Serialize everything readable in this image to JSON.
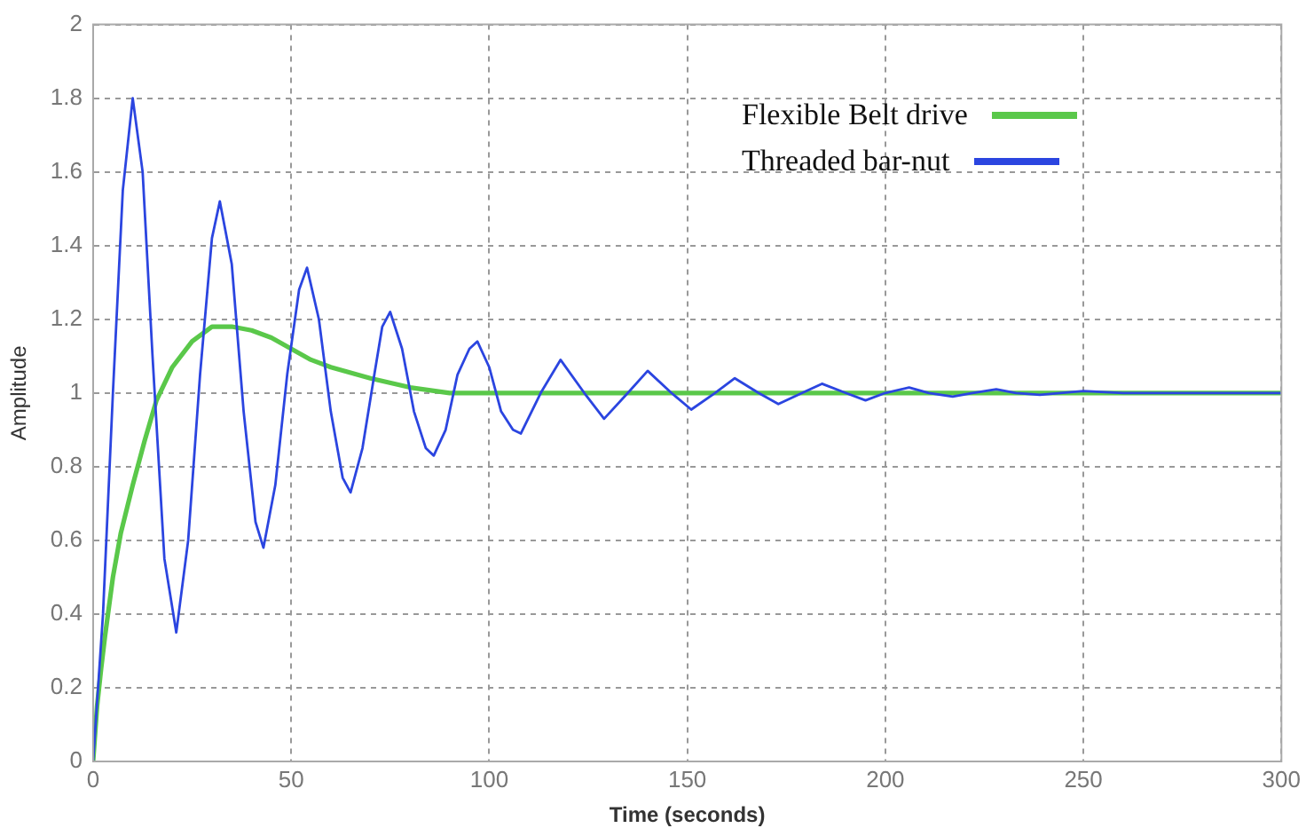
{
  "chart_data": {
    "type": "line",
    "xlabel": "Time (seconds)",
    "ylabel": "Amplitude",
    "xlim": [
      0,
      300
    ],
    "xticks": [
      0,
      50,
      100,
      150,
      200,
      250,
      300
    ],
    "ylim": [
      0,
      2
    ],
    "yticks": [
      0,
      0.2,
      0.4,
      0.6,
      0.8,
      1,
      1.2,
      1.4,
      1.6,
      1.8,
      2
    ],
    "grid": true,
    "legend": "top right",
    "marker": "none",
    "line_style": "solid",
    "series": [
      {
        "name": "Flexible Belt drive",
        "color": "#5ac84a",
        "x": [
          0,
          1,
          2,
          3,
          5,
          7,
          10,
          13,
          16,
          20,
          25,
          30,
          35,
          40,
          45,
          50,
          55,
          60,
          70,
          80,
          90,
          100,
          150,
          200,
          250,
          300
        ],
        "values": [
          0,
          0.15,
          0.25,
          0.34,
          0.5,
          0.62,
          0.75,
          0.87,
          0.98,
          1.07,
          1.14,
          1.18,
          1.18,
          1.17,
          1.15,
          1.12,
          1.09,
          1.07,
          1.04,
          1.015,
          1.0,
          1.0,
          1.0,
          1.0,
          1.0,
          1.0
        ]
      },
      {
        "name": "Threaded bar-nut",
        "color": "#2b45e0",
        "x": [
          0,
          2.5,
          5,
          7.5,
          10,
          12.5,
          15,
          18,
          21,
          24,
          27,
          30,
          32,
          35,
          38,
          41,
          43,
          46,
          49,
          52,
          54,
          57,
          60,
          63,
          65,
          68,
          71,
          73,
          75,
          78,
          81,
          84,
          86,
          89,
          92,
          95,
          97,
          100,
          103,
          106,
          108,
          113,
          118,
          124,
          129,
          135,
          140,
          146,
          151,
          157,
          162,
          168,
          173,
          179,
          184,
          190,
          195,
          200,
          206,
          211,
          217,
          222,
          228,
          233,
          239,
          250,
          260,
          270,
          280,
          290,
          300
        ],
        "values": [
          0,
          0.4,
          1.0,
          1.55,
          1.8,
          1.6,
          1.1,
          0.55,
          0.35,
          0.6,
          1.05,
          1.42,
          1.52,
          1.35,
          0.95,
          0.65,
          0.58,
          0.75,
          1.05,
          1.28,
          1.34,
          1.2,
          0.95,
          0.77,
          0.73,
          0.85,
          1.05,
          1.18,
          1.22,
          1.12,
          0.95,
          0.85,
          0.83,
          0.9,
          1.05,
          1.12,
          1.14,
          1.07,
          0.95,
          0.9,
          0.89,
          1.0,
          1.09,
          1.0,
          0.93,
          1.0,
          1.06,
          1.0,
          0.955,
          1.0,
          1.04,
          1.0,
          0.97,
          1.0,
          1.025,
          1.0,
          0.98,
          1.0,
          1.015,
          1.0,
          0.99,
          1.0,
          1.01,
          1.0,
          0.995,
          1.005,
          1.0,
          1.0,
          1.0,
          1.0,
          1.0
        ]
      }
    ]
  }
}
